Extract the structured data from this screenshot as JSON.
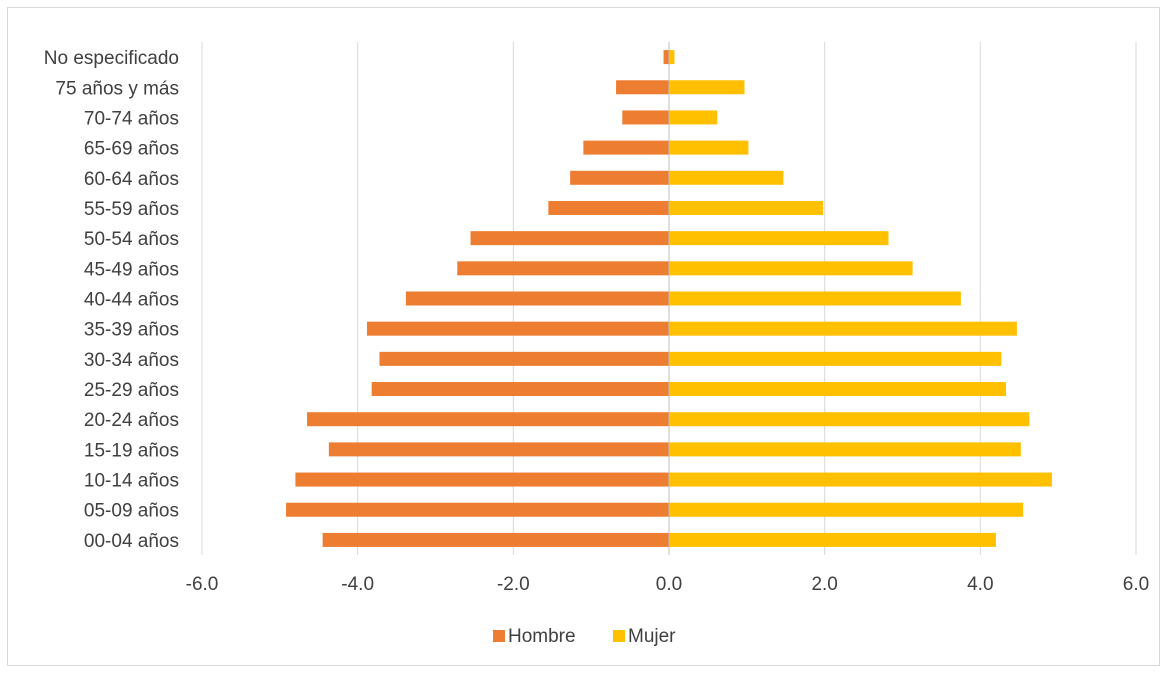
{
  "chart_data": {
    "type": "bar",
    "orientation": "horizontal",
    "categories": [
      "00-04 años",
      "05-09 años",
      "10-14 años",
      "15-19 años",
      "20-24 años",
      "25-29 años",
      "30-34 años",
      "35-39 años",
      "40-44 años",
      "45-49 años",
      "50-54 años",
      "55-59 años",
      "60-64 años",
      "65-69 años",
      "70-74 años",
      "75 años y más",
      "No especificado"
    ],
    "series": [
      {
        "name": "Hombre",
        "color": "#ED7D31",
        "values": [
          -4.45,
          -4.92,
          -4.8,
          -4.37,
          -4.65,
          -3.82,
          -3.72,
          -3.88,
          -3.38,
          -2.72,
          -2.55,
          -1.55,
          -1.27,
          -1.1,
          -0.6,
          -0.68,
          -0.07
        ]
      },
      {
        "name": "Mujer",
        "color": "#FFC000",
        "values": [
          4.2,
          4.55,
          4.92,
          4.52,
          4.63,
          4.33,
          4.27,
          4.47,
          3.75,
          3.13,
          2.82,
          1.98,
          1.47,
          1.02,
          0.62,
          0.97,
          0.07
        ]
      }
    ],
    "xlim": [
      -6,
      6
    ],
    "xticks": [
      "-6.0",
      "-4.0",
      "-2.0",
      "0.0",
      "2.0",
      "4.0",
      "6.0"
    ],
    "title": "",
    "xlabel": "",
    "ylabel": "",
    "grid": true,
    "legend_position": "bottom"
  }
}
